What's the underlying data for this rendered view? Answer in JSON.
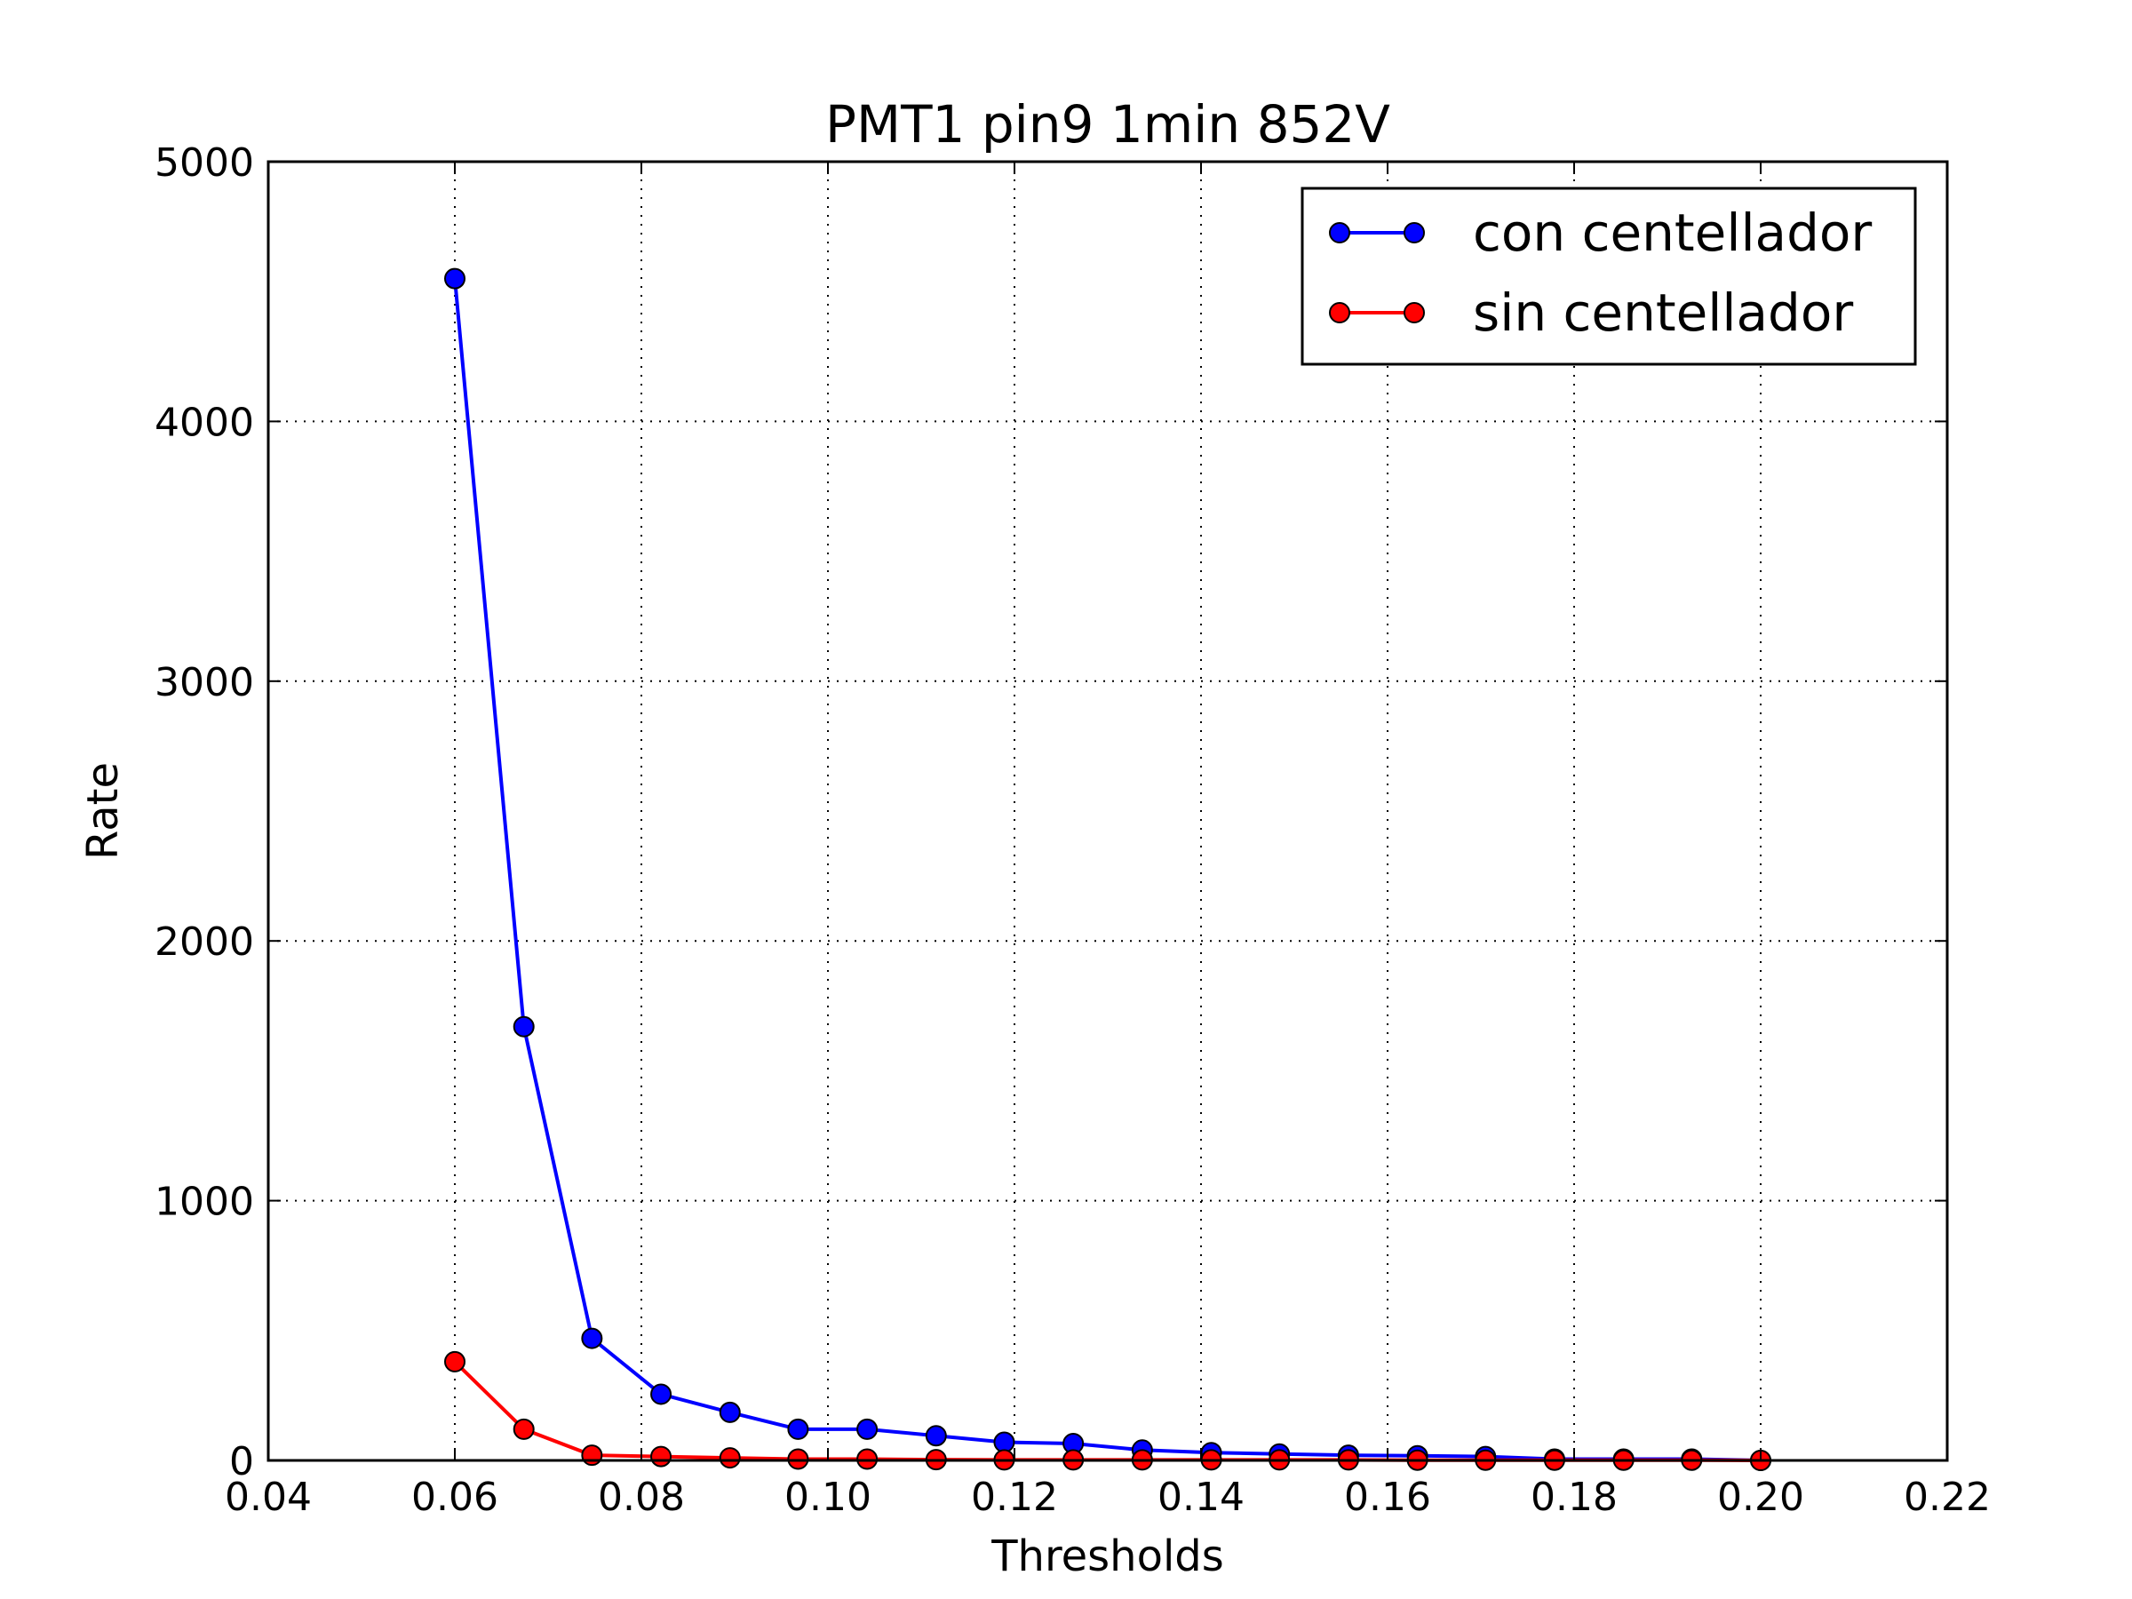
{
  "chart_data": {
    "type": "line",
    "title": "PMT1 pin9 1min 852V",
    "xlabel": "Thresholds",
    "ylabel": "Rate",
    "xlim": [
      0.04,
      0.22
    ],
    "ylim": [
      0,
      5000
    ],
    "xticks": [
      0.04,
      0.06,
      0.08,
      0.1,
      0.12,
      0.14,
      0.16,
      0.18,
      0.2,
      0.22
    ],
    "xtick_labels": [
      "0.04",
      "0.06",
      "0.08",
      "0.10",
      "0.12",
      "0.14",
      "0.16",
      "0.18",
      "0.20",
      "0.22"
    ],
    "yticks": [
      0,
      1000,
      2000,
      3000,
      4000,
      5000
    ],
    "ytick_labels": [
      "0",
      "1000",
      "2000",
      "3000",
      "4000",
      "5000"
    ],
    "grid": true,
    "legend_position": "top-right",
    "x": [
      0.06,
      0.0674,
      0.0747,
      0.0821,
      0.0895,
      0.0968,
      0.1042,
      0.1116,
      0.1189,
      0.1263,
      0.1337,
      0.1411,
      0.1484,
      0.1558,
      0.1632,
      0.1705,
      0.1779,
      0.1853,
      0.1926,
      0.2
    ],
    "series": [
      {
        "name": "con centellador",
        "color": "#0000ff",
        "values": [
          4550,
          1670,
          470,
          255,
          185,
          120,
          120,
          95,
          70,
          65,
          40,
          30,
          25,
          20,
          18,
          15,
          5,
          5,
          5,
          0
        ]
      },
      {
        "name": "sin centellador",
        "color": "#ff0000",
        "values": [
          380,
          120,
          20,
          15,
          10,
          5,
          5,
          3,
          2,
          2,
          2,
          2,
          2,
          2,
          1,
          1,
          1,
          1,
          1,
          0
        ]
      }
    ]
  }
}
